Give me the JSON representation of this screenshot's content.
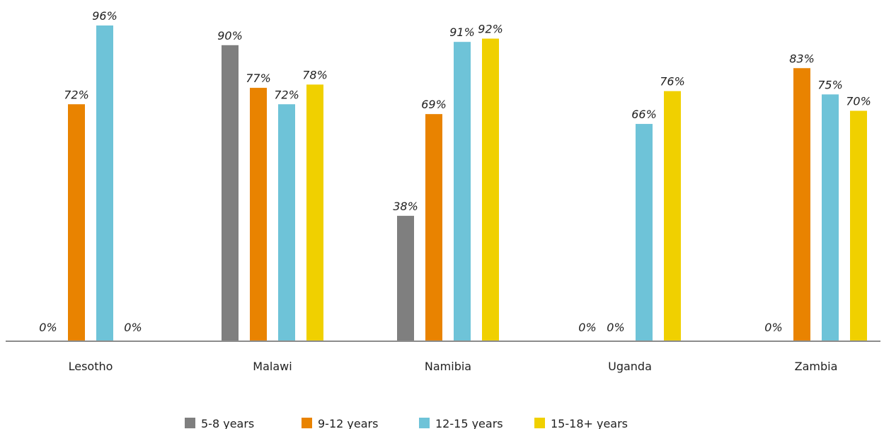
{
  "chart_data": {
    "type": "bar",
    "categories": [
      "Lesotho",
      "Malawi",
      "Namibia",
      "Uganda",
      "Zambia"
    ],
    "series": [
      {
        "name": "5-8 years",
        "color": "#7f7f7f",
        "values": [
          0,
          90,
          38,
          0,
          0
        ],
        "labels": [
          "0%",
          "90%",
          "38%",
          "0%",
          "0%"
        ]
      },
      {
        "name": "9-12 years",
        "color": "#e98300",
        "values": [
          72,
          77,
          69,
          0,
          83
        ],
        "labels": [
          "72%",
          "77%",
          "69%",
          "0%",
          "83%"
        ]
      },
      {
        "name": "12-15 years",
        "color": "#6ec3d8",
        "values": [
          96,
          72,
          91,
          66,
          75
        ],
        "labels": [
          "96%",
          "72%",
          "91%",
          "66%",
          "75%"
        ]
      },
      {
        "name": "15-18+ years",
        "color": "#f0d000",
        "values": [
          0,
          78,
          92,
          76,
          70
        ],
        "labels": [
          "0%",
          "78%",
          "92%",
          "76%",
          "70%"
        ]
      }
    ],
    "ylim": [
      0,
      100
    ],
    "grid": false,
    "legend_position": "bottom",
    "axis_color": "#8c8c8c"
  }
}
